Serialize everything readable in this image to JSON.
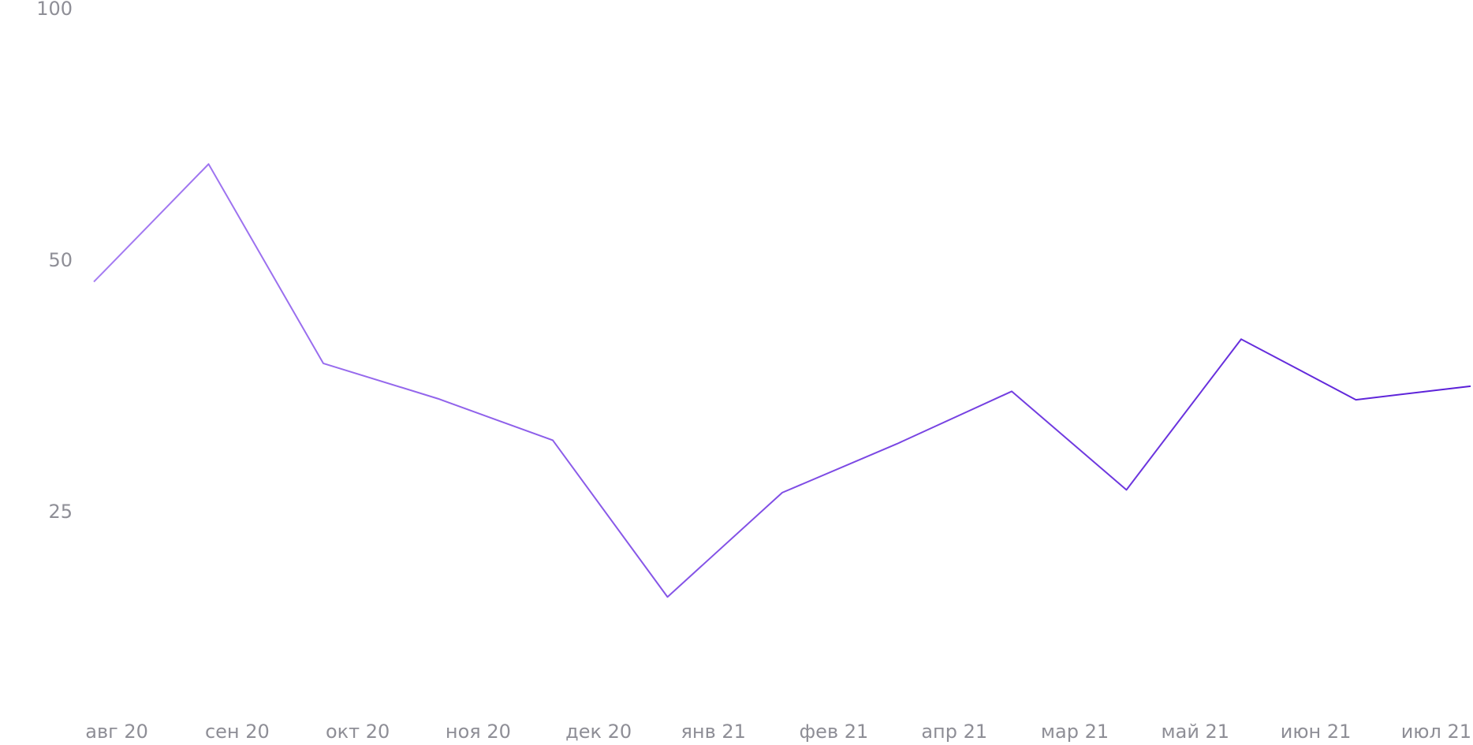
{
  "chart_data": {
    "type": "line",
    "x": [
      0,
      1,
      2,
      3,
      4,
      5,
      6,
      7,
      8,
      9,
      10,
      11,
      12
    ],
    "xlim": [
      0,
      12
    ],
    "xticks": [
      {
        "value": 0.2,
        "label": "авг 20"
      },
      {
        "value": 1.25,
        "label": "сен 20"
      },
      {
        "value": 2.3,
        "label": "окт 20"
      },
      {
        "value": 3.35,
        "label": "ноя 20"
      },
      {
        "value": 4.4,
        "label": "дек 20"
      },
      {
        "value": 5.4,
        "label": "янв 21"
      },
      {
        "value": 6.45,
        "label": "фев 21"
      },
      {
        "value": 7.5,
        "label": "апр 21"
      },
      {
        "value": 8.55,
        "label": "мар 21"
      },
      {
        "value": 9.6,
        "label": "май 21"
      },
      {
        "value": 10.65,
        "label": "июн 21"
      },
      {
        "value": 11.7,
        "label": "июл 21"
      }
    ],
    "values": [
      47.2,
      65.3,
      37.7,
      34.2,
      30.5,
      19.8,
      26.4,
      30.2,
      34.9,
      26.6,
      40.3,
      34.1,
      35.4
    ],
    "ylim": [
      15,
      100
    ],
    "yticks": [
      25,
      50,
      100
    ],
    "yscale": "log",
    "grid": false,
    "color_start": "#a57cf2",
    "color_end": "#5a1fd8"
  }
}
